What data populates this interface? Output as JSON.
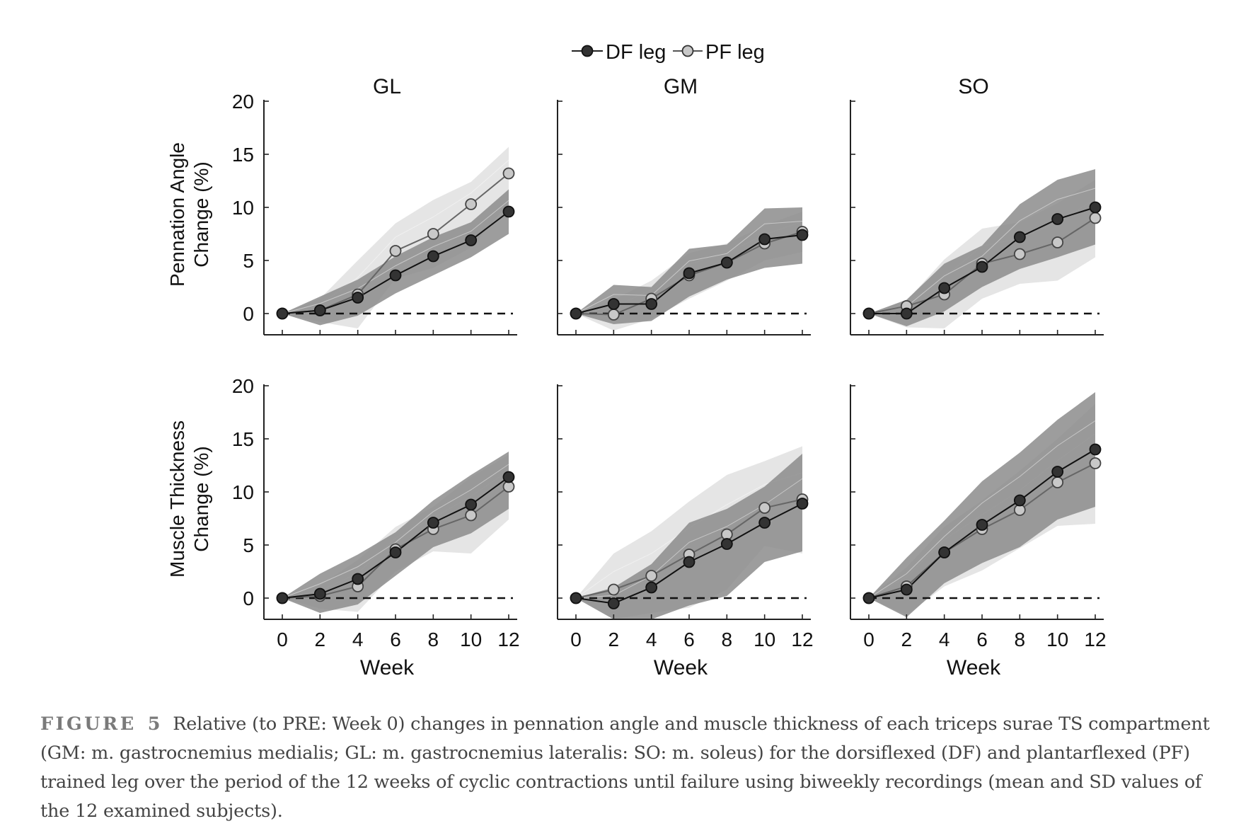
{
  "legend": {
    "df_label": "DF leg",
    "pf_label": "PF leg"
  },
  "colors": {
    "df_marker": "#333333",
    "pf_marker": "#c8c8c8",
    "df_band": "#8c8c8c",
    "pf_band": "#dcdcdc",
    "axis": "#222222"
  },
  "caption": {
    "label": "FIGURE",
    "number": "5",
    "text": "Relative (to PRE: Week 0) changes in pennation angle and muscle thickness of each triceps surae TS compartment (GM: m. gastrocnemius medialis; GL: m. gastrocnemius lateralis: SO: m. soleus) for the dorsiflexed (DF) and plantarflexed (PF) trained leg over the period of the 12 weeks of cyclic contractions until failure using biweekly recordings (mean and SD values of the 12 examined subjects)."
  },
  "chart_data": [
    {
      "type": "line",
      "title": "GL",
      "ylabel": "Pennation Angle Change (%)",
      "xlabel": "",
      "x": [
        0,
        2,
        4,
        6,
        8,
        10,
        12
      ],
      "xlim": [
        0,
        12
      ],
      "ylim": [
        -2,
        20
      ],
      "yticks": [
        0,
        5,
        10,
        15,
        20
      ],
      "series": [
        {
          "name": "DF leg",
          "values": [
            0,
            0.3,
            1.5,
            3.6,
            5.4,
            6.9,
            9.6
          ],
          "band_lower": [
            0,
            -1.1,
            -0.2,
            1.9,
            3.6,
            5.3,
            7.5
          ],
          "band_upper": [
            0,
            1.6,
            3.2,
            5.4,
            7.2,
            8.6,
            11.7
          ]
        },
        {
          "name": "PF leg",
          "values": [
            0,
            0.3,
            1.8,
            5.9,
            7.5,
            10.3,
            13.2
          ],
          "band_lower": [
            0,
            -0.8,
            -1.4,
            3.3,
            4.3,
            6.2,
            10.4
          ],
          "band_upper": [
            0,
            1.4,
            5.0,
            8.5,
            10.7,
            12.4,
            15.7
          ]
        }
      ]
    },
    {
      "type": "line",
      "title": "GM",
      "ylabel": "",
      "xlabel": "",
      "x": [
        0,
        2,
        4,
        6,
        8,
        10,
        12
      ],
      "xlim": [
        0,
        12
      ],
      "ylim": [
        -2,
        20
      ],
      "yticks": [
        0,
        5,
        10,
        15,
        20
      ],
      "series": [
        {
          "name": "DF leg",
          "values": [
            0,
            0.9,
            0.9,
            3.8,
            4.8,
            7.0,
            7.4
          ],
          "band_lower": [
            0,
            -1.0,
            -0.7,
            1.6,
            3.2,
            4.3,
            4.7
          ],
          "band_upper": [
            0,
            2.7,
            2.5,
            6.1,
            6.5,
            9.9,
            10.0
          ]
        },
        {
          "name": "PF leg",
          "values": [
            0,
            -0.1,
            1.4,
            3.6,
            4.8,
            6.6,
            7.7
          ],
          "band_lower": [
            0,
            -1.6,
            -0.5,
            1.4,
            3.1,
            5.0,
            5.8
          ],
          "band_upper": [
            0,
            1.3,
            3.1,
            5.7,
            6.6,
            8.3,
            9.6
          ]
        }
      ]
    },
    {
      "type": "line",
      "title": "SO",
      "ylabel": "",
      "xlabel": "",
      "x": [
        0,
        2,
        4,
        6,
        8,
        10,
        12
      ],
      "xlim": [
        0,
        12
      ],
      "ylim": [
        -2,
        20
      ],
      "yticks": [
        0,
        5,
        10,
        15,
        20
      ],
      "series": [
        {
          "name": "DF leg",
          "values": [
            0,
            0.0,
            2.4,
            4.4,
            7.2,
            8.9,
            10.0
          ],
          "band_lower": [
            0,
            -1.2,
            0.2,
            2.5,
            4.2,
            5.3,
            6.5
          ],
          "band_upper": [
            0,
            1.3,
            4.7,
            6.4,
            10.3,
            12.6,
            13.6
          ]
        },
        {
          "name": "PF leg",
          "values": [
            0,
            0.7,
            1.8,
            4.7,
            5.6,
            6.7,
            9.0
          ],
          "band_lower": [
            0,
            -1.3,
            -1.4,
            1.4,
            2.8,
            3.1,
            5.3
          ],
          "band_upper": [
            0,
            1.2,
            5.1,
            8.0,
            8.6,
            10.4,
            12.6
          ]
        }
      ]
    },
    {
      "type": "line",
      "title": "",
      "ylabel": "Muscle Thickness Change (%)",
      "xlabel": "Week",
      "x": [
        0,
        2,
        4,
        6,
        8,
        10,
        12
      ],
      "xlim": [
        0,
        12
      ],
      "ylim": [
        -2,
        20
      ],
      "yticks": [
        0,
        5,
        10,
        15,
        20
      ],
      "series": [
        {
          "name": "DF leg",
          "values": [
            0,
            0.4,
            1.8,
            4.3,
            7.1,
            8.8,
            11.4
          ],
          "band_lower": [
            0,
            -1.4,
            -0.6,
            2.1,
            4.8,
            6.1,
            8.4
          ],
          "band_upper": [
            0,
            2.3,
            4.1,
            6.2,
            9.2,
            11.6,
            13.8
          ]
        },
        {
          "name": "PF leg",
          "values": [
            0,
            0.2,
            1.1,
            4.6,
            6.5,
            7.8,
            10.5
          ],
          "band_lower": [
            0,
            -1.0,
            -1.3,
            2.5,
            4.4,
            4.2,
            7.4
          ],
          "band_upper": [
            0,
            1.2,
            3.6,
            6.7,
            8.6,
            11.4,
            13.5
          ]
        }
      ]
    },
    {
      "type": "line",
      "title": "",
      "ylabel": "",
      "xlabel": "Week",
      "x": [
        0,
        2,
        4,
        6,
        8,
        10,
        12
      ],
      "xlim": [
        0,
        12
      ],
      "ylim": [
        -2,
        20
      ],
      "yticks": [
        0,
        5,
        10,
        15,
        20
      ],
      "series": [
        {
          "name": "DF leg",
          "values": [
            0,
            -0.5,
            1.0,
            3.4,
            5.1,
            7.1,
            8.9
          ],
          "band_lower": [
            0,
            -2.0,
            -2.0,
            -0.7,
            0.2,
            3.4,
            4.4
          ],
          "band_upper": [
            0,
            1.0,
            3.2,
            7.1,
            8.4,
            10.5,
            13.6
          ]
        },
        {
          "name": "PF leg",
          "values": [
            0,
            0.8,
            2.1,
            4.1,
            6.0,
            8.5,
            9.3
          ],
          "band_lower": [
            0,
            -2.0,
            -1.4,
            -0.9,
            0.8,
            4.9,
            4.2
          ],
          "band_upper": [
            0,
            4.2,
            6.3,
            9.1,
            11.6,
            12.9,
            14.3
          ]
        }
      ]
    },
    {
      "type": "line",
      "title": "",
      "ylabel": "",
      "xlabel": "Week",
      "x": [
        0,
        2,
        4,
        6,
        8,
        10,
        12
      ],
      "xlim": [
        0,
        12
      ],
      "ylim": [
        -2,
        20
      ],
      "yticks": [
        0,
        5,
        10,
        15,
        20
      ],
      "series": [
        {
          "name": "DF leg",
          "values": [
            0,
            0.8,
            4.3,
            6.9,
            9.2,
            11.9,
            14.0
          ],
          "band_lower": [
            0,
            -1.8,
            1.4,
            3.3,
            4.8,
            7.4,
            8.6
          ],
          "band_upper": [
            0,
            3.8,
            7.3,
            11.0,
            13.7,
            16.8,
            19.4
          ]
        },
        {
          "name": "PF leg",
          "values": [
            0,
            1.1,
            4.3,
            6.5,
            8.3,
            10.9,
            12.7
          ],
          "band_lower": [
            0,
            -1.6,
            1.1,
            2.6,
            4.7,
            6.8,
            7.0
          ],
          "band_upper": [
            0,
            2.9,
            6.7,
            9.2,
            12.0,
            15.0,
            18.3
          ]
        }
      ]
    }
  ]
}
